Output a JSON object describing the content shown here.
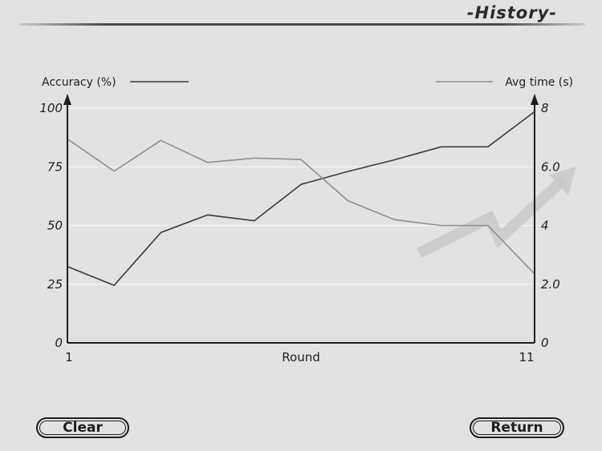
{
  "screen": {
    "title": "-History-"
  },
  "buttons": {
    "clear_label": "Clear",
    "return_label": "Return"
  },
  "chart_data": {
    "type": "line",
    "xlabel": "Round",
    "x_tick_labels": [
      "1",
      "11"
    ],
    "x": [
      1,
      2,
      3,
      4,
      5,
      6,
      7,
      8,
      9,
      10,
      11
    ],
    "xlim": [
      1,
      11
    ],
    "left_axis": {
      "label": "Accuracy (%)",
      "ticks": [
        "0",
        "25",
        "50",
        "75",
        "100"
      ],
      "tick_values": [
        0,
        25,
        50,
        75,
        100
      ],
      "ylim": [
        0,
        100
      ]
    },
    "right_axis": {
      "label": "Avg time (s)",
      "ticks": [
        "0",
        "2.0",
        "4",
        "6.0",
        "8"
      ],
      "tick_values": [
        0,
        2,
        4,
        6,
        8
      ],
      "ylim": [
        0,
        8
      ]
    },
    "series": [
      {
        "name": "Accuracy (%)",
        "axis": "left",
        "color": "#3a3a3a",
        "values": [
          32.5,
          24.5,
          47,
          54.5,
          52,
          67.5,
          73,
          78,
          83.5,
          83.5,
          98.5
        ]
      },
      {
        "name": "Avg time (s)",
        "axis": "right",
        "color": "#8e8e8e",
        "values": [
          6.95,
          5.85,
          6.9,
          6.15,
          6.3,
          6.25,
          4.85,
          4.2,
          4.0,
          4.0,
          2.35
        ]
      }
    ],
    "grid": "horizontal",
    "legend": "top",
    "colors": {
      "axis": "#1e1e1e",
      "grid": "#f2f2f2",
      "background": "#e2e2e2"
    }
  }
}
